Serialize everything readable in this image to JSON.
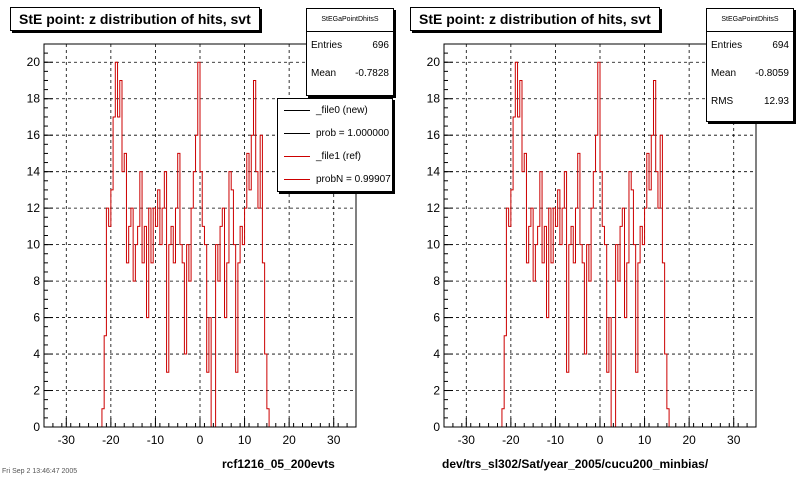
{
  "colors": {
    "ref": "#cc0000",
    "new": "#000000",
    "grid": "#000000"
  },
  "panels": [
    {
      "title": "StE point: z distribution of hits, svt",
      "stats": {
        "name": "StEGaPointDhitsS",
        "rows": [
          [
            "Entries",
            "696"
          ],
          [
            "Mean",
            "-0.7828"
          ]
        ]
      },
      "legend": [
        {
          "label": "_file0 (new)",
          "color": "#000000"
        },
        {
          "label": "prob = 1.000000",
          "color": "#000000"
        },
        {
          "label": "_file1 (ref)",
          "color": "#cc0000"
        },
        {
          "label": "probN = 0.99907",
          "color": "#cc0000"
        }
      ],
      "xlabel": "rcf1216_05_200evts"
    },
    {
      "title": "StE point: z distribution of hits, svt",
      "stats": {
        "name": "StEGaPointDhitsS",
        "rows": [
          [
            "Entries",
            "694"
          ],
          [
            "Mean",
            "-0.8059"
          ],
          [
            "RMS",
            "12.93"
          ]
        ]
      },
      "legend": [],
      "xlabel": "dev/trs_sl302/Sat/year_2005/cucu200_minbias/"
    }
  ],
  "footer": "Fri Sep 2 13:46:47 2005",
  "chart_data": [
    {
      "type": "histogram",
      "title": "StE point: z distribution of hits, svt",
      "xlabel": "rcf1216_05_200evts",
      "xlim": [
        -35,
        35
      ],
      "ylim": [
        0,
        21
      ],
      "xticks": [
        -30,
        -20,
        -10,
        0,
        10,
        20,
        30
      ],
      "yticks": [
        0,
        2,
        4,
        6,
        8,
        10,
        12,
        14,
        16,
        18,
        20
      ],
      "grid": true,
      "legend_position": "top-right",
      "series": [
        {
          "name": "_file1 (ref)",
          "bin_edges_start": -35,
          "bin_width": 0.5,
          "values": [
            0,
            0,
            0,
            0,
            0,
            0,
            0,
            0,
            0,
            0,
            0,
            0,
            0,
            0,
            0,
            0,
            0,
            0,
            0,
            0,
            0,
            0,
            0,
            0,
            0,
            0,
            1,
            5,
            12,
            11,
            13,
            17,
            20,
            17,
            19,
            14,
            15,
            9,
            11,
            12,
            8,
            10,
            11,
            14,
            9,
            11,
            6,
            12,
            9,
            12,
            11,
            13,
            10,
            12,
            14,
            3,
            10,
            11,
            9,
            12,
            15,
            10,
            9,
            4,
            10,
            8,
            12,
            14,
            16,
            20,
            14,
            11,
            10,
            3,
            6,
            0,
            0,
            10,
            8,
            11,
            12,
            6,
            9,
            14,
            13,
            10,
            3,
            9,
            11,
            10,
            12,
            15,
            13,
            16,
            19,
            14,
            12,
            16,
            9,
            4,
            1,
            0,
            0,
            0,
            0,
            0,
            0,
            0,
            0,
            0,
            0,
            0,
            0,
            0,
            0,
            0,
            0,
            0,
            0,
            0,
            0,
            0,
            0,
            0,
            0,
            0,
            0,
            0,
            0,
            0,
            0,
            0,
            0,
            0,
            0,
            0,
            0,
            0,
            0,
            0
          ]
        }
      ]
    },
    {
      "type": "histogram",
      "title": "StE point: z distribution of hits, svt",
      "xlabel": "dev/trs_sl302/Sat/year_2005/cucu200_minbias/",
      "xlim": [
        -35,
        35
      ],
      "ylim": [
        0,
        21
      ],
      "xticks": [
        -30,
        -20,
        -10,
        0,
        10,
        20,
        30
      ],
      "yticks": [
        0,
        2,
        4,
        6,
        8,
        10,
        12,
        14,
        16,
        18,
        20
      ],
      "grid": true,
      "series": [
        {
          "name": "_file1 (ref)",
          "bin_edges_start": -35,
          "bin_width": 0.5,
          "values": [
            0,
            0,
            0,
            0,
            0,
            0,
            0,
            0,
            0,
            0,
            0,
            0,
            0,
            0,
            0,
            0,
            0,
            0,
            0,
            0,
            0,
            0,
            0,
            0,
            0,
            0,
            1,
            5,
            12,
            11,
            13,
            17,
            20,
            17,
            19,
            14,
            15,
            9,
            11,
            12,
            8,
            10,
            11,
            14,
            9,
            11,
            6,
            12,
            9,
            12,
            11,
            13,
            10,
            12,
            14,
            3,
            10,
            11,
            9,
            12,
            15,
            10,
            9,
            4,
            10,
            8,
            12,
            14,
            16,
            20,
            14,
            11,
            10,
            3,
            6,
            0,
            0,
            10,
            8,
            11,
            12,
            6,
            9,
            14,
            13,
            10,
            3,
            9,
            11,
            10,
            12,
            15,
            13,
            16,
            19,
            14,
            12,
            16,
            9,
            4,
            1,
            0,
            0,
            0,
            0,
            0,
            0,
            0,
            0,
            0,
            0,
            0,
            0,
            0,
            0,
            0,
            0,
            0,
            0,
            0,
            0,
            0,
            0,
            0,
            0,
            0,
            0,
            0,
            0,
            0,
            0,
            0,
            0,
            0,
            0,
            0,
            0,
            0,
            0,
            0
          ]
        }
      ]
    }
  ]
}
